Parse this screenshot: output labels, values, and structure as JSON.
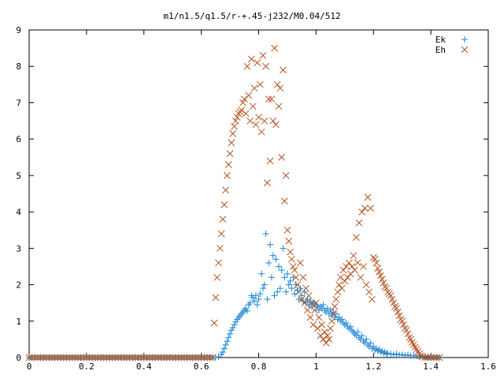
{
  "chart_data": {
    "type": "scatter",
    "title": "m1/n1.5/q1.5/r-+.45-j232/M0.04/512",
    "xlabel": "",
    "ylabel": "",
    "xlim": [
      0,
      1.6
    ],
    "ylim": [
      0,
      9
    ],
    "xticks": [
      "0",
      "0.2",
      "0.4",
      "0.6",
      "0.8",
      "1",
      "1.2",
      "1.4",
      "1.6"
    ],
    "yticks": [
      "0",
      "1",
      "2",
      "3",
      "4",
      "5",
      "6",
      "7",
      "8",
      "9"
    ],
    "grid": false,
    "legend": "top-right",
    "series": [
      {
        "name": "Ek",
        "marker": "plus",
        "color": "#1a86d6",
        "points": [
          [
            0.66,
            0.02
          ],
          [
            0.67,
            0.08
          ],
          [
            0.675,
            0.15
          ],
          [
            0.68,
            0.25
          ],
          [
            0.685,
            0.35
          ],
          [
            0.69,
            0.45
          ],
          [
            0.695,
            0.55
          ],
          [
            0.7,
            0.65
          ],
          [
            0.705,
            0.75
          ],
          [
            0.71,
            0.82
          ],
          [
            0.715,
            0.9
          ],
          [
            0.72,
            0.98
          ],
          [
            0.725,
            1.05
          ],
          [
            0.73,
            1.1
          ],
          [
            0.735,
            1.15
          ],
          [
            0.74,
            1.2
          ],
          [
            0.745,
            1.25
          ],
          [
            0.75,
            1.3
          ],
          [
            0.755,
            1.35
          ],
          [
            0.76,
            1.28
          ],
          [
            0.765,
            1.45
          ],
          [
            0.77,
            1.5
          ],
          [
            0.775,
            1.7
          ],
          [
            0.78,
            1.65
          ],
          [
            0.785,
            1.55
          ],
          [
            0.79,
            1.7
          ],
          [
            0.795,
            1.45
          ],
          [
            0.8,
            1.6
          ],
          [
            0.805,
            1.75
          ],
          [
            0.81,
            2.3
          ],
          [
            0.815,
            1.9
          ],
          [
            0.82,
            2.0
          ],
          [
            0.825,
            3.4
          ],
          [
            0.83,
            1.6
          ],
          [
            0.835,
            2.6
          ],
          [
            0.84,
            3.1
          ],
          [
            0.845,
            2.2
          ],
          [
            0.85,
            2.8
          ],
          [
            0.855,
            1.7
          ],
          [
            0.86,
            2.7
          ],
          [
            0.865,
            1.8
          ],
          [
            0.87,
            2.5
          ],
          [
            0.875,
            1.9
          ],
          [
            0.88,
            2.4
          ],
          [
            0.885,
            3.0
          ],
          [
            0.89,
            2.2
          ],
          [
            0.895,
            1.8
          ],
          [
            0.9,
            2.3
          ],
          [
            0.905,
            2.0
          ],
          [
            0.91,
            2.1
          ],
          [
            0.915,
            1.9
          ],
          [
            0.92,
            2.2
          ],
          [
            0.925,
            1.75
          ],
          [
            0.93,
            2.0
          ],
          [
            0.935,
            1.85
          ],
          [
            0.94,
            1.6
          ],
          [
            0.945,
            1.9
          ],
          [
            0.95,
            1.7
          ],
          [
            0.955,
            1.55
          ],
          [
            0.96,
            1.8
          ],
          [
            0.965,
            1.5
          ],
          [
            0.97,
            1.6
          ],
          [
            0.975,
            1.45
          ],
          [
            0.98,
            1.55
          ],
          [
            0.985,
            1.4
          ],
          [
            0.99,
            1.5
          ],
          [
            0.995,
            1.45
          ],
          [
            1.0,
            1.45
          ],
          [
            1.005,
            1.4
          ],
          [
            1.01,
            1.3
          ],
          [
            1.015,
            1.4
          ],
          [
            1.02,
            1.35
          ],
          [
            1.025,
            1.45
          ],
          [
            1.03,
            1.3
          ],
          [
            1.035,
            1.25
          ],
          [
            1.04,
            1.35
          ],
          [
            1.045,
            1.2
          ],
          [
            1.05,
            1.3
          ],
          [
            1.055,
            1.15
          ],
          [
            1.06,
            1.25
          ],
          [
            1.065,
            1.1
          ],
          [
            1.07,
            1.2
          ],
          [
            1.075,
            1.05
          ],
          [
            1.08,
            1.1
          ],
          [
            1.085,
            1.0
          ],
          [
            1.09,
            1.05
          ],
          [
            1.095,
            0.95
          ],
          [
            1.1,
            0.9
          ],
          [
            1.105,
            0.95
          ],
          [
            1.11,
            0.85
          ],
          [
            1.115,
            0.8
          ],
          [
            1.12,
            0.85
          ],
          [
            1.125,
            0.75
          ],
          [
            1.13,
            0.7
          ],
          [
            1.135,
            0.65
          ],
          [
            1.14,
            0.6
          ],
          [
            1.145,
            0.7
          ],
          [
            1.15,
            0.55
          ],
          [
            1.155,
            0.5
          ],
          [
            1.16,
            0.6
          ],
          [
            1.165,
            0.45
          ],
          [
            1.17,
            0.4
          ],
          [
            1.175,
            0.5
          ],
          [
            1.18,
            0.35
          ],
          [
            1.185,
            0.3
          ],
          [
            1.19,
            0.4
          ],
          [
            1.195,
            0.25
          ],
          [
            1.2,
            0.3
          ],
          [
            1.205,
            0.2
          ],
          [
            1.21,
            0.25
          ],
          [
            1.215,
            0.18
          ],
          [
            1.22,
            0.22
          ],
          [
            1.225,
            0.15
          ],
          [
            1.23,
            0.18
          ],
          [
            1.235,
            0.12
          ],
          [
            1.24,
            0.15
          ],
          [
            1.245,
            0.1
          ],
          [
            1.25,
            0.12
          ],
          [
            1.26,
            0.1
          ],
          [
            1.27,
            0.08
          ],
          [
            1.28,
            0.1
          ],
          [
            1.29,
            0.07
          ],
          [
            1.3,
            0.08
          ],
          [
            1.31,
            0.06
          ],
          [
            1.32,
            0.07
          ],
          [
            1.33,
            0.05
          ],
          [
            1.34,
            0.05
          ],
          [
            1.35,
            0.04
          ],
          [
            1.36,
            0.04
          ],
          [
            1.37,
            0.03
          ],
          [
            1.38,
            0.03
          ],
          [
            1.39,
            0.02
          ],
          [
            1.4,
            0.02
          ],
          [
            1.41,
            0.01
          ],
          [
            1.42,
            0.01
          ],
          [
            1.43,
            0.005
          ]
        ]
      },
      {
        "name": "Eh",
        "marker": "cross",
        "color": "#b3521e",
        "points": [
          [
            0.645,
            0.95
          ],
          [
            0.65,
            1.65
          ],
          [
            0.655,
            2.2
          ],
          [
            0.66,
            2.6
          ],
          [
            0.665,
            3.0
          ],
          [
            0.67,
            3.4
          ],
          [
            0.675,
            3.8
          ],
          [
            0.68,
            4.2
          ],
          [
            0.685,
            4.6
          ],
          [
            0.69,
            5.0
          ],
          [
            0.695,
            5.3
          ],
          [
            0.7,
            5.6
          ],
          [
            0.705,
            5.9
          ],
          [
            0.71,
            6.15
          ],
          [
            0.715,
            6.35
          ],
          [
            0.72,
            6.5
          ],
          [
            0.725,
            6.6
          ],
          [
            0.73,
            6.7
          ],
          [
            0.735,
            6.75
          ],
          [
            0.74,
            6.8
          ],
          [
            0.745,
            7.0
          ],
          [
            0.75,
            7.1
          ],
          [
            0.755,
            6.7
          ],
          [
            0.76,
            8.0
          ],
          [
            0.765,
            7.2
          ],
          [
            0.77,
            6.5
          ],
          [
            0.775,
            8.2
          ],
          [
            0.78,
            6.9
          ],
          [
            0.785,
            7.4
          ],
          [
            0.79,
            6.4
          ],
          [
            0.795,
            8.1
          ],
          [
            0.8,
            6.6
          ],
          [
            0.805,
            7.5
          ],
          [
            0.81,
            6.2
          ],
          [
            0.815,
            8.3
          ],
          [
            0.82,
            6.5
          ],
          [
            0.825,
            8.0
          ],
          [
            0.83,
            4.8
          ],
          [
            0.835,
            7.1
          ],
          [
            0.84,
            5.4
          ],
          [
            0.845,
            7.1
          ],
          [
            0.85,
            6.5
          ],
          [
            0.855,
            8.5
          ],
          [
            0.86,
            6.4
          ],
          [
            0.865,
            7.5
          ],
          [
            0.87,
            6.9
          ],
          [
            0.875,
            7.4
          ],
          [
            0.88,
            5.5
          ],
          [
            0.885,
            7.9
          ],
          [
            0.89,
            4.3
          ],
          [
            0.895,
            5.0
          ],
          [
            0.9,
            3.5
          ],
          [
            0.905,
            3.2
          ],
          [
            0.91,
            2.9
          ],
          [
            0.915,
            2.7
          ],
          [
            0.92,
            2.5
          ],
          [
            0.925,
            2.4
          ],
          [
            0.93,
            2.2
          ],
          [
            0.935,
            2.0
          ],
          [
            0.94,
            1.8
          ],
          [
            0.945,
            2.6
          ],
          [
            0.95,
            1.6
          ],
          [
            0.955,
            2.2
          ],
          [
            0.96,
            1.5
          ],
          [
            0.965,
            1.9
          ],
          [
            0.97,
            1.3
          ],
          [
            0.975,
            1.7
          ],
          [
            0.98,
            1.1
          ],
          [
            0.985,
            1.5
          ],
          [
            0.99,
            0.9
          ],
          [
            0.995,
            1.3
          ],
          [
            1.0,
            1.5
          ],
          [
            1.005,
            0.8
          ],
          [
            1.01,
            1.1
          ],
          [
            1.015,
            0.6
          ],
          [
            1.02,
            0.9
          ],
          [
            1.025,
            0.5
          ],
          [
            1.03,
            0.7
          ],
          [
            1.035,
            0.4
          ],
          [
            1.04,
            0.6
          ],
          [
            1.045,
            0.5
          ],
          [
            1.05,
            0.8
          ],
          [
            1.055,
            1.0
          ],
          [
            1.06,
            1.2
          ],
          [
            1.065,
            1.4
          ],
          [
            1.07,
            1.6
          ],
          [
            1.075,
            1.8
          ],
          [
            1.08,
            2.0
          ],
          [
            1.085,
            2.2
          ],
          [
            1.09,
            1.9
          ],
          [
            1.095,
            2.4
          ],
          [
            1.1,
            2.1
          ],
          [
            1.105,
            2.5
          ],
          [
            1.11,
            2.2
          ],
          [
            1.115,
            2.6
          ],
          [
            1.12,
            2.3
          ],
          [
            1.125,
            2.5
          ],
          [
            1.13,
            2.8
          ],
          [
            1.135,
            2.4
          ],
          [
            1.14,
            3.3
          ],
          [
            1.145,
            2.6
          ],
          [
            1.15,
            3.7
          ],
          [
            1.155,
            2.2
          ],
          [
            1.16,
            4.0
          ],
          [
            1.165,
            2.5
          ],
          [
            1.17,
            4.1
          ],
          [
            1.175,
            2.0
          ],
          [
            1.18,
            4.4
          ],
          [
            1.185,
            1.8
          ],
          [
            1.19,
            4.1
          ],
          [
            1.195,
            1.6
          ],
          [
            1.2,
            2.75
          ],
          [
            1.205,
            2.7
          ],
          [
            1.21,
            2.6
          ],
          [
            1.215,
            2.45
          ],
          [
            1.22,
            2.35
          ],
          [
            1.225,
            2.25
          ],
          [
            1.23,
            2.15
          ],
          [
            1.235,
            2.05
          ],
          [
            1.24,
            1.95
          ],
          [
            1.245,
            1.9
          ],
          [
            1.25,
            1.8
          ],
          [
            1.255,
            1.75
          ],
          [
            1.26,
            1.7
          ],
          [
            1.265,
            1.6
          ],
          [
            1.27,
            1.5
          ],
          [
            1.275,
            1.4
          ],
          [
            1.28,
            1.35
          ],
          [
            1.285,
            1.25
          ],
          [
            1.29,
            1.15
          ],
          [
            1.295,
            1.05
          ],
          [
            1.3,
            1.0
          ],
          [
            1.305,
            0.9
          ],
          [
            1.31,
            0.8
          ],
          [
            1.315,
            0.75
          ],
          [
            1.32,
            0.65
          ],
          [
            1.325,
            0.55
          ],
          [
            1.33,
            0.5
          ],
          [
            1.335,
            0.42
          ],
          [
            1.34,
            0.35
          ],
          [
            1.345,
            0.28
          ],
          [
            1.35,
            0.22
          ],
          [
            1.355,
            0.16
          ],
          [
            1.36,
            0.1
          ],
          [
            1.365,
            0.05
          ],
          [
            1.37,
            0.02
          ],
          [
            1.38,
            0.0
          ],
          [
            1.39,
            0.0
          ],
          [
            1.4,
            0.0
          ],
          [
            1.41,
            0.0
          ],
          [
            1.42,
            0.0
          ],
          [
            1.43,
            0.0
          ]
        ]
      }
    ]
  }
}
